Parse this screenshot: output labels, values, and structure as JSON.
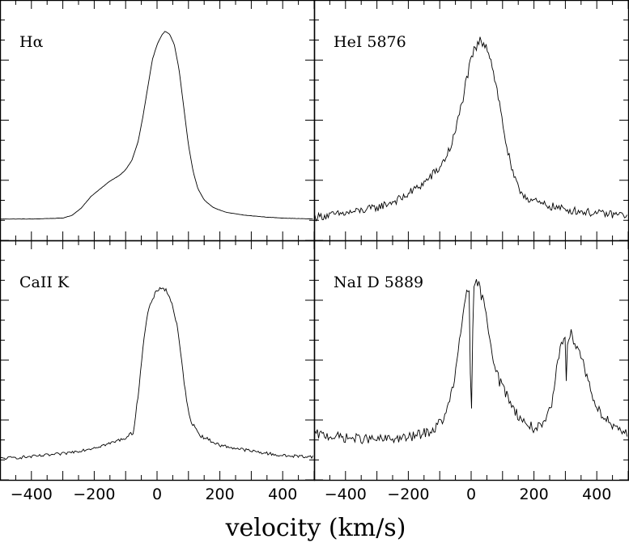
{
  "chart_data": {
    "type": "line",
    "xlabel": "velocity (km/s)",
    "xlim": [
      -500,
      500
    ],
    "xticks": [
      -400,
      -200,
      0,
      200,
      400
    ],
    "xtick_labels": [
      "−400",
      "−200",
      "0",
      "200",
      "400"
    ],
    "ylim": [
      0,
      1.08
    ],
    "panels": [
      {
        "label": "Hα",
        "noise": 0.001,
        "points": [
          [
            -500,
            0.01
          ],
          [
            -400,
            0.01
          ],
          [
            -300,
            0.015
          ],
          [
            -270,
            0.03
          ],
          [
            -240,
            0.07
          ],
          [
            -210,
            0.13
          ],
          [
            -180,
            0.17
          ],
          [
            -150,
            0.21
          ],
          [
            -120,
            0.24
          ],
          [
            -100,
            0.27
          ],
          [
            -80,
            0.32
          ],
          [
            -60,
            0.42
          ],
          [
            -45,
            0.55
          ],
          [
            -30,
            0.7
          ],
          [
            -15,
            0.85
          ],
          [
            0,
            0.93
          ],
          [
            15,
            0.98
          ],
          [
            25,
            1.0
          ],
          [
            40,
            0.985
          ],
          [
            55,
            0.93
          ],
          [
            70,
            0.8
          ],
          [
            85,
            0.6
          ],
          [
            100,
            0.4
          ],
          [
            115,
            0.26
          ],
          [
            130,
            0.17
          ],
          [
            150,
            0.11
          ],
          [
            180,
            0.07
          ],
          [
            220,
            0.045
          ],
          [
            280,
            0.03
          ],
          [
            350,
            0.02
          ],
          [
            400,
            0.015
          ],
          [
            500,
            0.01
          ]
        ]
      },
      {
        "label": "HeI 5876",
        "noise": 0.03,
        "points": [
          [
            -500,
            0.02
          ],
          [
            -400,
            0.04
          ],
          [
            -300,
            0.07
          ],
          [
            -220,
            0.12
          ],
          [
            -150,
            0.2
          ],
          [
            -100,
            0.28
          ],
          [
            -70,
            0.37
          ],
          [
            -50,
            0.47
          ],
          [
            -30,
            0.62
          ],
          [
            -10,
            0.78
          ],
          [
            10,
            0.9
          ],
          [
            30,
            0.95
          ],
          [
            50,
            0.93
          ],
          [
            70,
            0.8
          ],
          [
            90,
            0.62
          ],
          [
            110,
            0.42
          ],
          [
            130,
            0.26
          ],
          [
            150,
            0.17
          ],
          [
            180,
            0.12
          ],
          [
            220,
            0.09
          ],
          [
            300,
            0.06
          ],
          [
            400,
            0.04
          ],
          [
            500,
            0.03
          ]
        ]
      },
      {
        "label": "CaII K",
        "noise": 0.012,
        "points": [
          [
            -500,
            0.01
          ],
          [
            -400,
            0.02
          ],
          [
            -300,
            0.035
          ],
          [
            -220,
            0.06
          ],
          [
            -150,
            0.09
          ],
          [
            -100,
            0.12
          ],
          [
            -75,
            0.15
          ],
          [
            -60,
            0.35
          ],
          [
            -45,
            0.6
          ],
          [
            -30,
            0.78
          ],
          [
            -10,
            0.87
          ],
          [
            10,
            0.92
          ],
          [
            30,
            0.9
          ],
          [
            50,
            0.82
          ],
          [
            65,
            0.7
          ],
          [
            80,
            0.5
          ],
          [
            95,
            0.3
          ],
          [
            110,
            0.2
          ],
          [
            140,
            0.13
          ],
          [
            200,
            0.08
          ],
          [
            300,
            0.05
          ],
          [
            400,
            0.025
          ],
          [
            500,
            0.02
          ]
        ]
      },
      {
        "label": "NaI D 5889",
        "noise": 0.035,
        "points": [
          [
            -500,
            0.14
          ],
          [
            -400,
            0.12
          ],
          [
            -300,
            0.11
          ],
          [
            -200,
            0.12
          ],
          [
            -120,
            0.16
          ],
          [
            -80,
            0.24
          ],
          [
            -50,
            0.45
          ],
          [
            -30,
            0.72
          ],
          [
            -15,
            0.9
          ],
          [
            -6,
            0.93
          ],
          [
            -3,
            0.5
          ],
          [
            0,
            0.06
          ],
          [
            3,
            0.5
          ],
          [
            8,
            0.88
          ],
          [
            15,
            0.95
          ],
          [
            30,
            0.9
          ],
          [
            50,
            0.75
          ],
          [
            70,
            0.55
          ],
          [
            90,
            0.42
          ],
          [
            110,
            0.36
          ],
          [
            140,
            0.26
          ],
          [
            170,
            0.2
          ],
          [
            200,
            0.17
          ],
          [
            230,
            0.18
          ],
          [
            255,
            0.28
          ],
          [
            270,
            0.45
          ],
          [
            285,
            0.62
          ],
          [
            300,
            0.68
          ],
          [
            302,
            0.3
          ],
          [
            304,
            0.62
          ],
          [
            320,
            0.67
          ],
          [
            340,
            0.6
          ],
          [
            360,
            0.5
          ],
          [
            380,
            0.38
          ],
          [
            400,
            0.28
          ],
          [
            420,
            0.24
          ],
          [
            440,
            0.2
          ],
          [
            460,
            0.16
          ],
          [
            480,
            0.15
          ],
          [
            500,
            0.15
          ]
        ]
      }
    ]
  }
}
